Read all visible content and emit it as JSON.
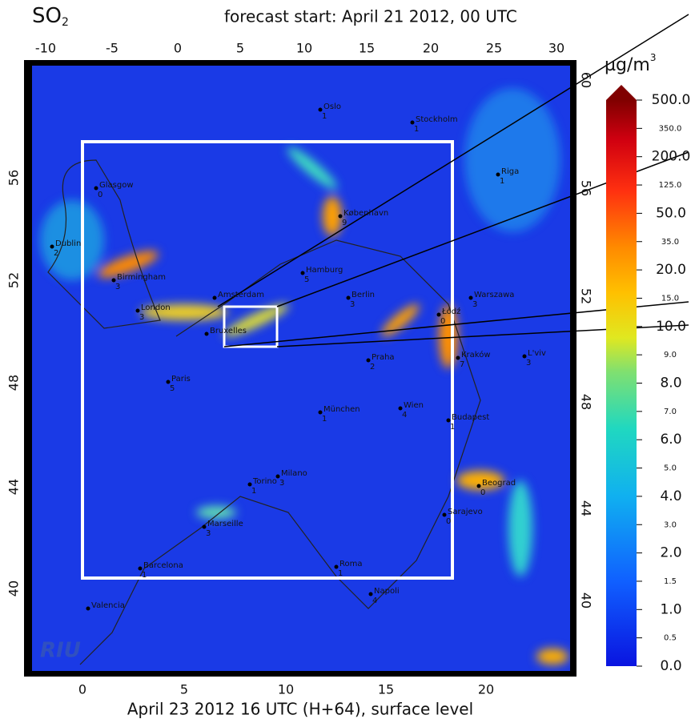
{
  "title": {
    "species": "SO",
    "subscript": "2"
  },
  "forecast_start": "forecast start: April 21 2012, 00 UTC",
  "caption": "April 23 2012 16 UTC (H+64), surface level",
  "axes": {
    "top": [
      -10,
      -5,
      0,
      5,
      10,
      15,
      20,
      25,
      30
    ],
    "bottom": [
      0,
      5,
      10,
      15,
      20
    ],
    "left": [
      56,
      52,
      48,
      44,
      40
    ],
    "right": [
      60,
      56,
      52,
      48,
      44,
      40
    ]
  },
  "colorbar": {
    "unit": "µg/m",
    "unit_exp": "3",
    "labels": [
      "500.0",
      "350.0",
      "200.0",
      "125.0",
      "50.0",
      "35.0",
      "20.0",
      "15.0",
      "10.0",
      "9.0",
      "8.0",
      "7.0",
      "6.0",
      "5.0",
      "4.0",
      "3.0",
      "2.0",
      "1.5",
      "1.0",
      "0.5",
      "0.0"
    ]
  },
  "cities": [
    {
      "name": "Oslo",
      "value": "1"
    },
    {
      "name": "Stockholm",
      "value": "1"
    },
    {
      "name": "Glasgow",
      "value": "0"
    },
    {
      "name": "Riga",
      "value": "1"
    },
    {
      "name": "København",
      "value": "9"
    },
    {
      "name": "Dublin",
      "value": "2"
    },
    {
      "name": "Hamburg",
      "value": "5"
    },
    {
      "name": "Birmingham",
      "value": "3"
    },
    {
      "name": "Amsterdam"
    },
    {
      "name": "Berlin",
      "value": "3"
    },
    {
      "name": "Warszawa",
      "value": "3"
    },
    {
      "name": "Łódź",
      "value": "0"
    },
    {
      "name": "London",
      "value": "3"
    },
    {
      "name": "Bruxelles"
    },
    {
      "name": "Praha",
      "value": "2"
    },
    {
      "name": "Kraków",
      "value": "7"
    },
    {
      "name": "L'viv",
      "value": "3"
    },
    {
      "name": "Paris",
      "value": "5"
    },
    {
      "name": "München",
      "value": "1"
    },
    {
      "name": "Wien",
      "value": "4"
    },
    {
      "name": "Budapest",
      "value": "1"
    },
    {
      "name": "Torino",
      "value": "1"
    },
    {
      "name": "Milano",
      "value": "3"
    },
    {
      "name": "Beograd",
      "value": "0"
    },
    {
      "name": "Sarajevo",
      "value": "0"
    },
    {
      "name": "Marseille",
      "value": "3"
    },
    {
      "name": "Barcelona",
      "value": "1"
    },
    {
      "name": "Roma",
      "value": "1"
    },
    {
      "name": "Napoli",
      "value": "4"
    },
    {
      "name": "Valencia"
    }
  ],
  "logo": "RIU"
}
